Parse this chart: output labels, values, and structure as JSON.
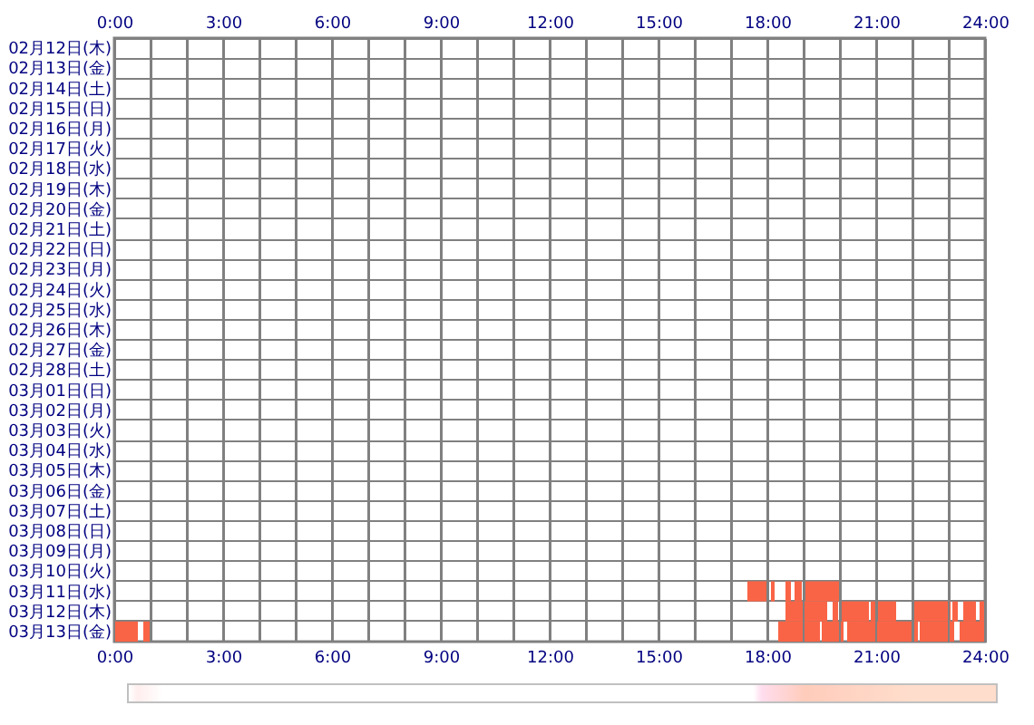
{
  "chart_data": {
    "type": "bar",
    "orientation": "horizontal",
    "grid": true,
    "categories": [
      "02月12日(木)",
      "02月13日(金)",
      "02月14日(土)",
      "02月15日(日)",
      "02月16日(月)",
      "02月17日(火)",
      "02月18日(水)",
      "02月19日(木)",
      "02月20日(金)",
      "02月21日(土)",
      "02月22日(日)",
      "02月23日(月)",
      "02月24日(火)",
      "02月25日(水)",
      "02月26日(木)",
      "02月27日(金)",
      "02月28日(土)",
      "03月01日(日)",
      "03月02日(月)",
      "03月03日(火)",
      "03月04日(水)",
      "03月05日(木)",
      "03月06日(金)",
      "03月07日(土)",
      "03月08日(日)",
      "03月09日(月)",
      "03月10日(火)",
      "03月11日(水)",
      "03月12日(木)",
      "03月13日(金)"
    ],
    "xlim": [
      0,
      24
    ],
    "xticks": [
      {
        "value": 0,
        "label": "0:00"
      },
      {
        "value": 1,
        "label": null
      },
      {
        "value": 2,
        "label": null
      },
      {
        "value": 3,
        "label": "3:00"
      },
      {
        "value": 4,
        "label": null
      },
      {
        "value": 5,
        "label": null
      },
      {
        "value": 6,
        "label": "6:00"
      },
      {
        "value": 7,
        "label": null
      },
      {
        "value": 8,
        "label": null
      },
      {
        "value": 9,
        "label": "9:00"
      },
      {
        "value": 10,
        "label": null
      },
      {
        "value": 11,
        "label": null
      },
      {
        "value": 12,
        "label": "12:00"
      },
      {
        "value": 13,
        "label": null
      },
      {
        "value": 14,
        "label": null
      },
      {
        "value": 15,
        "label": "15:00"
      },
      {
        "value": 16,
        "label": null
      },
      {
        "value": 17,
        "label": null
      },
      {
        "value": 18,
        "label": "18:00"
      },
      {
        "value": 19,
        "label": null
      },
      {
        "value": 20,
        "label": null
      },
      {
        "value": 21,
        "label": "21:00"
      },
      {
        "value": 22,
        "label": null
      },
      {
        "value": 23,
        "label": null
      },
      {
        "value": 24,
        "label": "24:00"
      }
    ],
    "x2lim": [
      0,
      24
    ],
    "x2ticks": [
      {
        "value": 0,
        "label": "0:00"
      },
      {
        "value": 1,
        "label": null
      },
      {
        "value": 2,
        "label": null
      },
      {
        "value": 3,
        "label": "3:00"
      },
      {
        "value": 4,
        "label": null
      },
      {
        "value": 5,
        "label": null
      },
      {
        "value": 6,
        "label": "6:00"
      },
      {
        "value": 7,
        "label": null
      },
      {
        "value": 8,
        "label": null
      },
      {
        "value": 9,
        "label": "9:00"
      },
      {
        "value": 10,
        "label": null
      },
      {
        "value": 11,
        "label": null
      },
      {
        "value": 12,
        "label": "12:00"
      },
      {
        "value": 13,
        "label": null
      },
      {
        "value": 14,
        "label": null
      },
      {
        "value": 15,
        "label": "15:00"
      },
      {
        "value": 16,
        "label": null
      },
      {
        "value": 17,
        "label": null
      },
      {
        "value": 18,
        "label": "18:00"
      },
      {
        "value": 19,
        "label": null
      },
      {
        "value": 20,
        "label": null
      },
      {
        "value": 21,
        "label": "21:00"
      },
      {
        "value": 22,
        "label": null
      },
      {
        "value": 23,
        "label": null
      },
      {
        "value": 24,
        "label": "24:00"
      }
    ],
    "series": [
      {
        "color": "#fa6446",
        "base": [
          null,
          null,
          null,
          null,
          null,
          null,
          null,
          null,
          null,
          null,
          null,
          null,
          null,
          null,
          null,
          null,
          null,
          null,
          null,
          null,
          null,
          null,
          null,
          null,
          null,
          null,
          null,
          17.45,
          18.5,
          0
        ],
        "values": [
          null,
          null,
          null,
          null,
          null,
          null,
          null,
          null,
          null,
          null,
          null,
          null,
          null,
          null,
          null,
          null,
          null,
          null,
          null,
          null,
          null,
          null,
          null,
          null,
          null,
          null,
          null,
          0.55,
          1.15,
          0.65
        ]
      },
      {
        "color": "#fa6446",
        "base": [
          null,
          null,
          null,
          null,
          null,
          null,
          null,
          null,
          null,
          null,
          null,
          null,
          null,
          null,
          null,
          null,
          null,
          null,
          null,
          null,
          null,
          null,
          null,
          null,
          null,
          null,
          null,
          18.1,
          19.8,
          0.8
        ],
        "values": [
          null,
          null,
          null,
          null,
          null,
          null,
          null,
          null,
          null,
          null,
          null,
          null,
          null,
          null,
          null,
          null,
          null,
          null,
          null,
          null,
          null,
          null,
          null,
          null,
          null,
          null,
          null,
          0.1,
          0.15,
          0.2
        ]
      },
      {
        "color": "#fa6446",
        "base": [
          null,
          null,
          null,
          null,
          null,
          null,
          null,
          null,
          null,
          null,
          null,
          null,
          null,
          null,
          null,
          null,
          null,
          null,
          null,
          null,
          null,
          null,
          null,
          null,
          null,
          null,
          null,
          18.5,
          20.05,
          18.3
        ],
        "values": [
          null,
          null,
          null,
          null,
          null,
          null,
          null,
          null,
          null,
          null,
          null,
          null,
          null,
          null,
          null,
          null,
          null,
          null,
          null,
          null,
          null,
          null,
          null,
          null,
          null,
          null,
          null,
          0.15,
          0.75,
          1.15
        ]
      },
      {
        "color": "#fa6446",
        "base": [
          null,
          null,
          null,
          null,
          null,
          null,
          null,
          null,
          null,
          null,
          null,
          null,
          null,
          null,
          null,
          null,
          null,
          null,
          null,
          null,
          null,
          null,
          null,
          null,
          null,
          null,
          null,
          18.75,
          20.85,
          19.5
        ],
        "values": [
          null,
          null,
          null,
          null,
          null,
          null,
          null,
          null,
          null,
          null,
          null,
          null,
          null,
          null,
          null,
          null,
          null,
          null,
          null,
          null,
          null,
          null,
          null,
          null,
          null,
          null,
          null,
          0.2,
          0.15,
          0.6
        ]
      },
      {
        "color": "#fa6446",
        "base": [
          null,
          null,
          null,
          null,
          null,
          null,
          null,
          null,
          null,
          null,
          null,
          null,
          null,
          null,
          null,
          null,
          null,
          null,
          null,
          null,
          null,
          null,
          null,
          null,
          null,
          null,
          null,
          19.05,
          21.05,
          20.2
        ],
        "values": [
          null,
          null,
          null,
          null,
          null,
          null,
          null,
          null,
          null,
          null,
          null,
          null,
          null,
          null,
          null,
          null,
          null,
          null,
          null,
          null,
          null,
          null,
          null,
          null,
          null,
          null,
          null,
          0.95,
          0.5,
          1.8
        ]
      },
      {
        "color": "#fa6446",
        "base": [
          null,
          null,
          null,
          null,
          null,
          null,
          null,
          null,
          null,
          null,
          null,
          null,
          null,
          null,
          null,
          null,
          null,
          null,
          null,
          null,
          null,
          null,
          null,
          null,
          null,
          null,
          null,
          null,
          22.05,
          22.05
        ],
        "values": [
          null,
          null,
          null,
          null,
          null,
          null,
          null,
          null,
          null,
          null,
          null,
          null,
          null,
          null,
          null,
          null,
          null,
          null,
          null,
          null,
          null,
          null,
          null,
          null,
          null,
          null,
          null,
          null,
          1.0,
          0.1
        ]
      },
      {
        "color": "#fa6446",
        "base": [
          null,
          null,
          null,
          null,
          null,
          null,
          null,
          null,
          null,
          null,
          null,
          null,
          null,
          null,
          null,
          null,
          null,
          null,
          null,
          null,
          null,
          null,
          null,
          null,
          null,
          null,
          null,
          null,
          23.1,
          22.2
        ],
        "values": [
          null,
          null,
          null,
          null,
          null,
          null,
          null,
          null,
          null,
          null,
          null,
          null,
          null,
          null,
          null,
          null,
          null,
          null,
          null,
          null,
          null,
          null,
          null,
          null,
          null,
          null,
          null,
          null,
          0.15,
          0.95
        ]
      },
      {
        "color": "#fa6446",
        "base": [
          null,
          null,
          null,
          null,
          null,
          null,
          null,
          null,
          null,
          null,
          null,
          null,
          null,
          null,
          null,
          null,
          null,
          null,
          null,
          null,
          null,
          null,
          null,
          null,
          null,
          null,
          null,
          null,
          23.4,
          23.3
        ],
        "values": [
          null,
          null,
          null,
          null,
          null,
          null,
          null,
          null,
          null,
          null,
          null,
          null,
          null,
          null,
          null,
          null,
          null,
          null,
          null,
          null,
          null,
          null,
          null,
          null,
          null,
          null,
          null,
          null,
          0.35,
          0.7
        ]
      },
      {
        "color": "#fa6446",
        "base": [
          null,
          null,
          null,
          null,
          null,
          null,
          null,
          null,
          null,
          null,
          null,
          null,
          null,
          null,
          null,
          null,
          null,
          null,
          null,
          null,
          null,
          null,
          null,
          null,
          null,
          null,
          null,
          null,
          23.85,
          null
        ],
        "values": [
          null,
          null,
          null,
          null,
          null,
          null,
          null,
          null,
          null,
          null,
          null,
          null,
          null,
          null,
          null,
          null,
          null,
          null,
          null,
          null,
          null,
          null,
          null,
          null,
          null,
          null,
          null,
          null,
          0.15,
          null
        ]
      }
    ]
  }
}
